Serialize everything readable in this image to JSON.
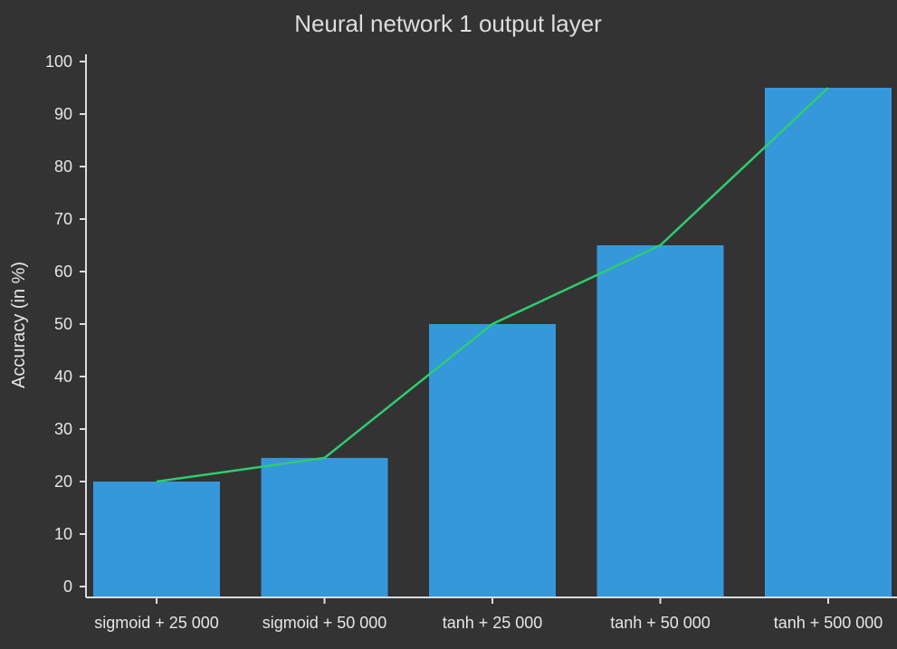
{
  "chart_data": {
    "type": "bar",
    "title": "Neural network 1 output layer",
    "xlabel": "",
    "ylabel": "Accuracy (in %)",
    "categories": [
      "sigmoid + 25 000",
      "sigmoid + 50 000",
      "tanh + 25 000",
      "tanh + 50 000",
      "tanh + 500 000"
    ],
    "values": [
      20,
      24.5,
      50,
      65,
      95
    ],
    "line_values": [
      20,
      24.5,
      50,
      65,
      95
    ],
    "ylim": [
      0,
      100
    ],
    "yticks": [
      0,
      10,
      20,
      30,
      40,
      50,
      60,
      70,
      80,
      90,
      100
    ],
    "grid": false,
    "legend": "none",
    "colors": {
      "background": "#333333",
      "bar": "#3498db",
      "line": "#2ecc71",
      "axis": "#dddddd",
      "text": "#e6e6e6"
    }
  }
}
